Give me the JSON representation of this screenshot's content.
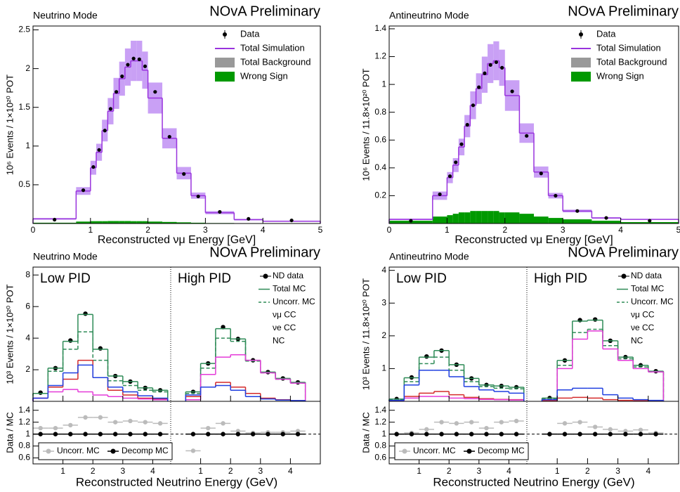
{
  "chart_data": [
    {
      "type": "histogram",
      "mode_label": "Neutrino Mode",
      "title": "NOvA Preliminary",
      "xlabel": "Reconstructed νμ Energy [GeV]",
      "ylabel": "10⁶ Events / 1×10²⁰ POT",
      "bins": [
        0,
        0.75,
        1.0,
        1.1,
        1.2,
        1.3,
        1.4,
        1.5,
        1.6,
        1.7,
        1.8,
        1.9,
        2.0,
        2.25,
        2.5,
        2.75,
        3.0,
        3.5,
        4.0,
        5.0
      ],
      "xlim": [
        0,
        5
      ],
      "xticks": [
        0,
        1,
        2,
        3,
        4,
        5
      ],
      "ylim": [
        0,
        2.55
      ],
      "yticks": [
        0.5,
        1,
        1.5,
        2,
        2.5
      ],
      "series": [
        {
          "name": "Data",
          "style": "points",
          "color": "#000000",
          "values": [
            0.05,
            0.43,
            0.73,
            0.95,
            1.2,
            1.48,
            1.7,
            1.9,
            2.05,
            2.13,
            2.12,
            2.03,
            1.7,
            1.12,
            0.64,
            0.35,
            0.15,
            0.06,
            0.04
          ]
        },
        {
          "name": "Total Simulation",
          "style": "line_band",
          "color": "#9933dd",
          "band_color": "#c9a0f5",
          "values": [
            0.06,
            0.42,
            0.72,
            0.92,
            1.2,
            1.45,
            1.68,
            1.87,
            2.02,
            2.1,
            2.1,
            1.98,
            1.62,
            1.1,
            0.65,
            0.36,
            0.14,
            0.05,
            0.03
          ],
          "errors": [
            0.01,
            0.05,
            0.09,
            0.11,
            0.14,
            0.17,
            0.2,
            0.22,
            0.24,
            0.26,
            0.26,
            0.24,
            0.2,
            0.13,
            0.08,
            0.04,
            0.02,
            0.01,
            0.005
          ]
        },
        {
          "name": "Total Background",
          "style": "fill",
          "color": "#999999",
          "values": [
            0.005,
            0.008,
            0.01,
            0.01,
            0.01,
            0.01,
            0.01,
            0.01,
            0.01,
            0.01,
            0.01,
            0.01,
            0.01,
            0.008,
            0.006,
            0.005,
            0.004,
            0.003,
            0.002
          ]
        },
        {
          "name": "Wrong Sign",
          "style": "fill",
          "color": "#009900",
          "values": [
            0.01,
            0.025,
            0.03,
            0.03,
            0.03,
            0.032,
            0.032,
            0.032,
            0.032,
            0.03,
            0.03,
            0.03,
            0.025,
            0.02,
            0.015,
            0.01,
            0.006,
            0.004,
            0.002
          ]
        }
      ]
    },
    {
      "type": "histogram",
      "mode_label": "Antineutrino Mode",
      "title": "NOvA Preliminary",
      "xlabel": "Reconstructed νμ Energy [GeV]",
      "ylabel": "10⁶ Events / 11.8×10²⁰ POT",
      "bins": [
        0,
        0.75,
        1.0,
        1.1,
        1.2,
        1.3,
        1.4,
        1.5,
        1.6,
        1.7,
        1.8,
        1.9,
        2.0,
        2.25,
        2.5,
        2.75,
        3.0,
        3.5,
        4.0,
        5.0
      ],
      "xlim": [
        0,
        5
      ],
      "xticks": [
        0,
        1,
        2,
        3,
        4,
        5
      ],
      "ylim": [
        0,
        1.42
      ],
      "yticks": [
        0.2,
        0.4,
        0.6,
        0.8,
        1,
        1.2,
        1.4
      ],
      "series": [
        {
          "name": "Data",
          "style": "points",
          "color": "#000000",
          "values": [
            0.02,
            0.21,
            0.34,
            0.44,
            0.57,
            0.71,
            0.85,
            0.98,
            1.08,
            1.14,
            1.16,
            1.12,
            0.95,
            0.63,
            0.36,
            0.2,
            0.09,
            0.04,
            0.02
          ]
        },
        {
          "name": "Total Simulation",
          "style": "line_band",
          "color": "#9933dd",
          "band_color": "#c9a0f5",
          "values": [
            0.03,
            0.2,
            0.33,
            0.42,
            0.55,
            0.7,
            0.85,
            0.97,
            1.07,
            1.15,
            1.17,
            1.12,
            0.92,
            0.65,
            0.37,
            0.2,
            0.09,
            0.04,
            0.03
          ],
          "errors": [
            0.005,
            0.03,
            0.04,
            0.05,
            0.06,
            0.08,
            0.1,
            0.11,
            0.13,
            0.14,
            0.14,
            0.13,
            0.11,
            0.07,
            0.04,
            0.02,
            0.01,
            0.005,
            0.003
          ]
        },
        {
          "name": "Total Background",
          "style": "fill",
          "color": "#999999",
          "values": [
            0.004,
            0.006,
            0.008,
            0.008,
            0.008,
            0.008,
            0.008,
            0.008,
            0.008,
            0.008,
            0.008,
            0.008,
            0.007,
            0.006,
            0.005,
            0.004,
            0.003,
            0.002,
            0.002
          ]
        },
        {
          "name": "Wrong Sign",
          "style": "fill",
          "color": "#009900",
          "values": [
            0.02,
            0.05,
            0.06,
            0.07,
            0.08,
            0.08,
            0.09,
            0.09,
            0.09,
            0.09,
            0.09,
            0.08,
            0.08,
            0.07,
            0.05,
            0.04,
            0.03,
            0.02,
            0.01
          ]
        }
      ]
    },
    {
      "type": "decomposition",
      "mode_label": "Neutrino Mode",
      "title": "NOvA Preliminary",
      "xlabel": "Reconstructed Neutrino Energy (GeV)",
      "ylabel": "10³ Events / 1×10²⁰ POT",
      "ratio_ylabel": "Data / MC",
      "ylim": [
        0,
        8.5
      ],
      "yticks": [
        2,
        4,
        6,
        8
      ],
      "xticks": [
        1,
        2,
        3,
        4
      ],
      "ratio_ylim": [
        0.5,
        1.55
      ],
      "ratio_yticks": [
        0.6,
        0.8,
        1,
        1.2,
        1.4
      ],
      "ratio_reference": 1,
      "series": [
        {
          "name": "ND data",
          "style": "points",
          "color": "#000000"
        },
        {
          "name": "Total MC",
          "style": "line",
          "color": "#2e8b57"
        },
        {
          "name": "Uncorr. MC",
          "style": "dashed",
          "color": "#2e8b57"
        },
        {
          "name": "νμ CC",
          "style": "text",
          "color": "#d42a2a"
        },
        {
          "name": "νe CC",
          "style": "text",
          "color": "#e43ad8"
        },
        {
          "name": "NC",
          "style": "text",
          "color": "#1f3fe0"
        }
      ],
      "ratio_series": [
        {
          "name": "Uncorr. MC",
          "color": "#bbbbbb"
        },
        {
          "name": "Decomp MC",
          "color": "#000000"
        }
      ],
      "panels": [
        {
          "label": "Low PID",
          "bins": [
            0,
            0.5,
            1,
            1.5,
            2,
            2.5,
            3,
            3.5,
            4,
            4.5
          ],
          "xlim": [
            0,
            4.6
          ],
          "values": [
            [
              0.55,
              2.1,
              3.85,
              5.55,
              3.35,
              1.6,
              1.25,
              0.85,
              0.7
            ],
            [
              0.5,
              2.1,
              3.8,
              5.5,
              3.3,
              1.6,
              1.25,
              0.85,
              0.7
            ],
            [
              0.5,
              1.9,
              3.3,
              4.4,
              2.6,
              1.3,
              1.0,
              0.7,
              0.6
            ],
            [
              0.2,
              0.9,
              1.4,
              2.6,
              1.5,
              0.7,
              0.4,
              0.2,
              0.15
            ],
            [
              0.2,
              0.6,
              0.75,
              0.6,
              0.4,
              0.3,
              0.2,
              0.15,
              0.1
            ],
            [
              0.2,
              1.0,
              1.8,
              2.3,
              1.5,
              0.9,
              0.6,
              0.35,
              0.2
            ]
          ],
          "ratio_values": [
            [
              1.1,
              1.1,
              1.15,
              1.28,
              1.28,
              1.2,
              1.22,
              1.2,
              1.18
            ],
            [
              1.0,
              1.0,
              1.0,
              1.0,
              1.0,
              1.0,
              1.0,
              1.0,
              1.0
            ]
          ]
        },
        {
          "label": "High PID",
          "bins": [
            0.5,
            1,
            1.5,
            2,
            2.5,
            3,
            3.5,
            4,
            4.5
          ],
          "xlim": [
            0,
            5
          ],
          "values": [
            [
              0.6,
              2.4,
              4.7,
              3.95,
              2.6,
              1.85,
              1.45,
              1.2
            ],
            [
              0.6,
              2.4,
              4.6,
              3.95,
              2.6,
              1.85,
              1.45,
              1.2
            ],
            [
              0.5,
              2.1,
              4.0,
              3.8,
              2.55,
              1.8,
              1.4,
              1.15
            ],
            [
              0.3,
              0.9,
              1.2,
              0.9,
              0.5,
              0.2,
              0.1,
              0.05
            ],
            [
              0.1,
              1.7,
              2.8,
              2.95,
              2.6,
              1.8,
              1.4,
              1.15
            ],
            [
              0.4,
              0.9,
              1.0,
              0.7,
              0.3,
              0.15,
              0.08,
              0.05
            ]
          ],
          "ratio_values": [
            [
              0.72,
              1.1,
              1.18,
              1.05,
              1.02,
              1.03,
              1.03,
              1.05
            ],
            [
              1.0,
              1.0,
              1.0,
              1.0,
              1.0,
              1.0,
              1.0,
              1.0
            ]
          ]
        }
      ]
    },
    {
      "type": "decomposition",
      "mode_label": "Antineutrino Mode",
      "title": "NOvA Preliminary",
      "xlabel": "Reconstructed Neutrino Energy (GeV)",
      "ylabel": "10³ Events / 11.8×10²⁰ POT",
      "ratio_ylabel": "Data / MC",
      "ylim": [
        0,
        4.1
      ],
      "yticks": [
        1,
        2,
        3,
        4
      ],
      "xticks": [
        1,
        2,
        3,
        4
      ],
      "ratio_ylim": [
        0.5,
        1.55
      ],
      "ratio_yticks": [
        0.6,
        0.8,
        1,
        1.2,
        1.4
      ],
      "ratio_reference": 1,
      "series": [
        {
          "name": "ND data",
          "style": "points",
          "color": "#000000"
        },
        {
          "name": "Total MC",
          "style": "line",
          "color": "#2e8b57"
        },
        {
          "name": "Uncorr. MC",
          "style": "dashed",
          "color": "#2e8b57"
        },
        {
          "name": "νμ CC",
          "style": "text",
          "color": "#d42a2a"
        },
        {
          "name": "νe CC",
          "style": "text",
          "color": "#e43ad8"
        },
        {
          "name": "NC",
          "style": "text",
          "color": "#1f3fe0"
        }
      ],
      "ratio_series": [
        {
          "name": "Uncorr. MC",
          "color": "#bbbbbb"
        },
        {
          "name": "Decomp MC",
          "color": "#000000"
        }
      ],
      "panels": [
        {
          "label": "Low PID",
          "bins": [
            0,
            0.5,
            1,
            1.5,
            2,
            2.5,
            3,
            3.5,
            4,
            4.5
          ],
          "xlim": [
            0,
            4.6
          ],
          "values": [
            [
              0.07,
              0.73,
              1.37,
              1.55,
              1.12,
              0.7,
              0.5,
              0.47,
              0.43
            ],
            [
              0.07,
              0.72,
              1.35,
              1.55,
              1.12,
              0.7,
              0.5,
              0.47,
              0.43
            ],
            [
              0.05,
              0.6,
              1.15,
              1.35,
              0.95,
              0.6,
              0.45,
              0.4,
              0.38
            ],
            [
              0.02,
              0.15,
              0.25,
              0.3,
              0.2,
              0.12,
              0.08,
              0.06,
              0.05
            ],
            [
              0.02,
              0.1,
              0.15,
              0.15,
              0.1,
              0.08,
              0.06,
              0.05,
              0.04
            ],
            [
              0.03,
              0.5,
              0.95,
              0.95,
              0.75,
              0.45,
              0.35,
              0.3,
              0.25
            ]
          ],
          "ratio_values": [
            [
              1.0,
              1.02,
              1.08,
              1.2,
              1.18,
              1.2,
              1.1,
              1.2,
              1.22
            ],
            [
              1.0,
              1.0,
              1.0,
              1.0,
              1.0,
              1.0,
              1.0,
              1.0,
              1.0
            ]
          ]
        },
        {
          "label": "High PID",
          "bins": [
            0.5,
            1,
            1.5,
            2,
            2.5,
            3,
            3.5,
            4,
            4.5
          ],
          "xlim": [
            0,
            5
          ],
          "values": [
            [
              0.1,
              1.25,
              2.48,
              2.5,
              1.85,
              1.35,
              1.1,
              0.92
            ],
            [
              0.1,
              1.25,
              2.45,
              2.48,
              1.85,
              1.35,
              1.1,
              0.92
            ],
            [
              0.08,
              1.1,
              2.1,
              2.2,
              1.7,
              1.3,
              1.05,
              0.9
            ],
            [
              0.02,
              0.1,
              0.12,
              0.1,
              0.05,
              0.03,
              0.02,
              0.01
            ],
            [
              0.05,
              1.0,
              1.9,
              2.15,
              1.6,
              1.25,
              1.0,
              0.9
            ],
            [
              0.05,
              0.35,
              0.4,
              0.4,
              0.2,
              0.1,
              0.05,
              0.03
            ]
          ],
          "ratio_values": [
            [
              1.0,
              1.18,
              1.2,
              1.12,
              1.08,
              1.05,
              1.07,
              1.02
            ],
            [
              1.0,
              1.0,
              1.0,
              1.0,
              1.0,
              1.0,
              1.0,
              1.0
            ]
          ]
        }
      ]
    }
  ]
}
